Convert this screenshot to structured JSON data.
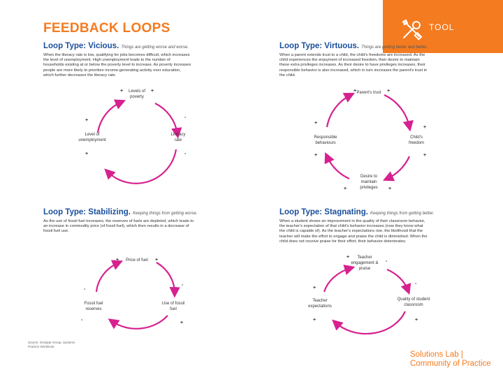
{
  "page": {
    "title": "FEEDBACK LOOPS",
    "tool_label": "TOOL",
    "source_line1": "Source: Omidyar Group, Systems",
    "source_line2": "Practice Workbook",
    "footer_line1": "Solutions Lab |",
    "footer_line2": "Community of Practice"
  },
  "colors": {
    "accent": "#f47b20",
    "heading": "#1a4f9c",
    "loop": "#d6218f"
  },
  "quadrants": [
    {
      "type": "Loop Type: Vicious.",
      "subtitle": "Things are getting worse and worse.",
      "desc": [
        "When the literacy rate is low, qualifying for jobs becomes difficult, which increases",
        "the level of unemployment. High unemployment leads to the number of",
        "households existing at or below the poverty level to increase. As poverty increases",
        "people are more likely to prioritize income-generating activity over education,",
        "which further decreases the literacy rate."
      ],
      "nodes": [
        {
          "line1": "Levels of",
          "line2": "poverty"
        },
        {
          "line1": "Literacy",
          "line2": "rate"
        },
        {
          "line1": "Level of",
          "line2": "unemployment"
        }
      ],
      "signs": [
        "+",
        "+",
        "-",
        "-",
        "+",
        "+"
      ]
    },
    {
      "type": "Loop Type: Virtuous.",
      "subtitle": "Things are getting better and better.",
      "desc": [
        "When a parent extends trust to a child, the child's freedoms are increased. As the",
        "child experiences the enjoyment of increased freedom, their desire to maintain",
        "these extra privileges increases. As their desire to have privileges increases, their",
        "responsible behavior is also increased, which in turn increases the parent's trust in",
        "the child."
      ],
      "nodes": [
        {
          "line1": "Parent's trust",
          "line2": ""
        },
        {
          "line1": "Child's",
          "line2": "freedom"
        },
        {
          "line1": "Desire to",
          "line2": "maintain",
          "line3": "privileges"
        },
        {
          "line1": "Responsible",
          "line2": "behaviours"
        }
      ],
      "signs": [
        "+",
        "+",
        "+",
        "+",
        "+",
        "+",
        "+",
        "+"
      ]
    },
    {
      "type": "Loop Type: Stabilizing.",
      "subtitle": "Keeping things from getting worse.",
      "desc": [
        "As the use of fossil fuel increases, the reserves of fuels are depleted, which leads to",
        "an increase in commodity price (of fossil fuel), which then results in a decrease of",
        "fossil fuel use."
      ],
      "nodes": [
        {
          "line1": "Price of fuel",
          "line2": ""
        },
        {
          "line1": "Use of fossil",
          "line2": "fuel"
        },
        {
          "line1": "Fossil fuel",
          "line2": "reserves"
        }
      ],
      "signs": [
        "+",
        "+",
        "-",
        "-",
        "-",
        "+"
      ]
    },
    {
      "type": "Loop Type: Stagnating.",
      "subtitle": "Keeping things from getting better.",
      "desc": [
        "When a student shows an improvement in the quality of their classroom behavior,",
        "the teacher's expectation of that child's behavior increases (now they know what",
        "the child is capable of). As the teacher's expectations rise, the likelihood that the",
        "teacher will make the effort to engage and praise the child is diminished. When the",
        "child does not receive praise for their effort, their behavior deteriorates."
      ],
      "nodes": [
        {
          "line1": "Teacher",
          "line2": "engagement &",
          "line3": "praise"
        },
        {
          "line1": "Quality of student",
          "line2": "classroom"
        },
        {
          "line1": "Teacher",
          "line2": "expectations"
        }
      ],
      "signs": [
        "+",
        "-",
        "-",
        "+",
        "+",
        "+"
      ]
    }
  ]
}
